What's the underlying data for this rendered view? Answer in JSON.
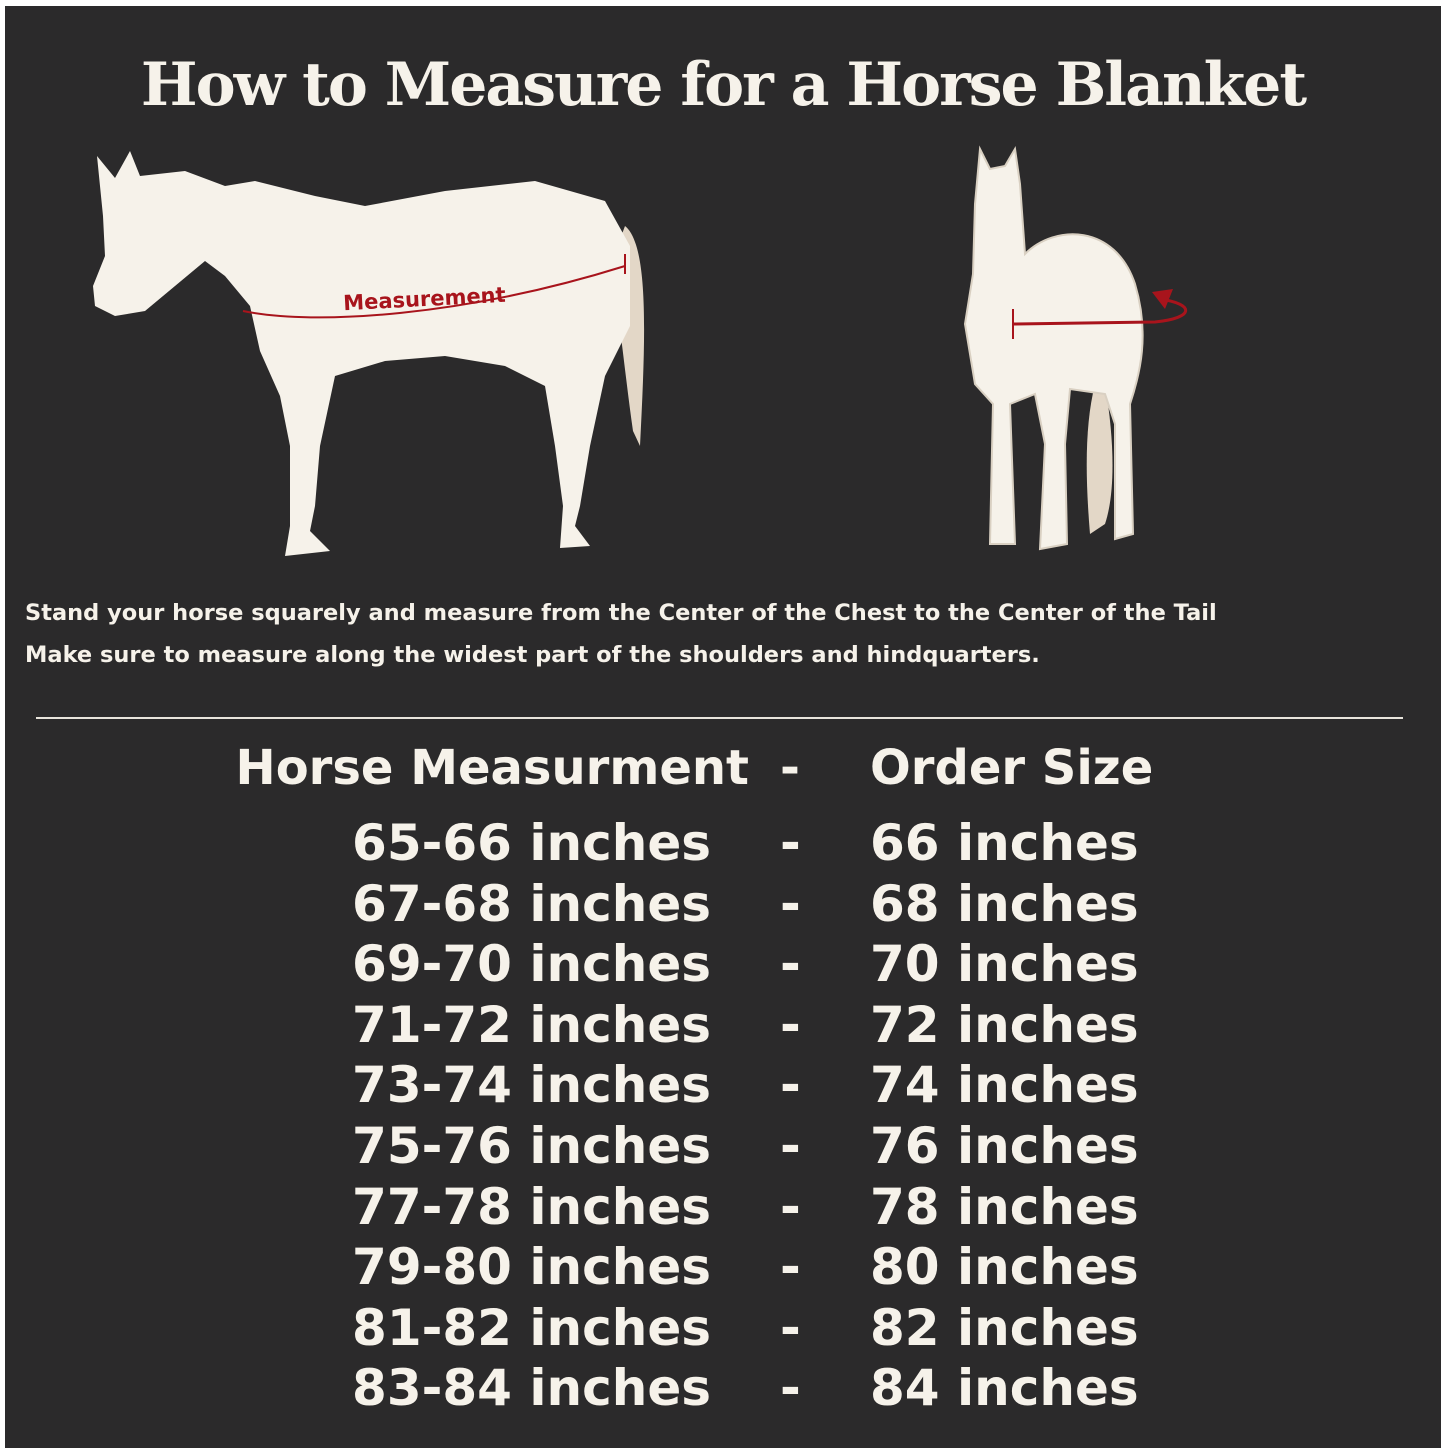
{
  "title": "How to Measure for a Horse Blanket",
  "illustration": {
    "side_label": "Measurement",
    "accent_color": "#a8141c",
    "horse_color": "#f6f2ea"
  },
  "instructions": [
    "Stand your horse squarely and measure from the Center of the Chest to the Center of the Tail",
    "Make sure to measure along the widest part of the shoulders and hindquarters."
  ],
  "table": {
    "header": {
      "left": "Horse Measurment",
      "sep": "-",
      "right": "Order Size"
    },
    "rows": [
      {
        "measure": "65-66 inches",
        "sep": "-",
        "size": "66 inches"
      },
      {
        "measure": "67-68 inches",
        "sep": "-",
        "size": "68 inches"
      },
      {
        "measure": "69-70 inches",
        "sep": "-",
        "size": "70 inches"
      },
      {
        "measure": "71-72 inches",
        "sep": "-",
        "size": "72 inches"
      },
      {
        "measure": "73-74 inches",
        "sep": "-",
        "size": "74 inches"
      },
      {
        "measure": "75-76 inches",
        "sep": "-",
        "size": "76 inches"
      },
      {
        "measure": "77-78 inches",
        "sep": "-",
        "size": "78 inches"
      },
      {
        "measure": "79-80 inches",
        "sep": "-",
        "size": "80 inches"
      },
      {
        "measure": "81-82 inches",
        "sep": "-",
        "size": "82 inches"
      },
      {
        "measure": "83-84 inches",
        "sep": "-",
        "size": "84 inches"
      }
    ]
  }
}
